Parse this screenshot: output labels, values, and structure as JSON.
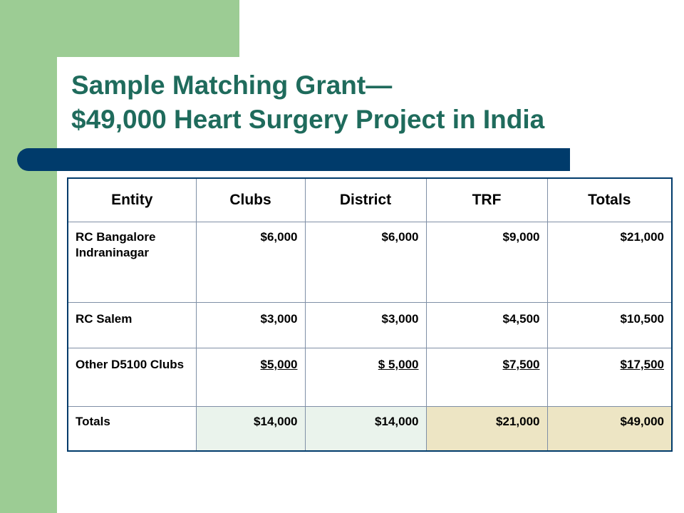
{
  "title": {
    "line1": "Sample Matching Grant—",
    "line2": "$49,000 Heart Surgery Project in India"
  },
  "table": {
    "headers": [
      "Entity",
      "Clubs",
      "District",
      "TRF",
      "Totals"
    ],
    "rows": [
      [
        "RC Bangalore Indraninagar",
        "$6,000",
        "$6,000",
        "$9,000",
        "$21,000"
      ],
      [
        "RC Salem",
        "$3,000",
        "$3,000",
        "$4,500",
        "$10,500"
      ],
      [
        "Other D5100 Clubs",
        "$5,000",
        "$ 5,000",
        "$7,500",
        "$17,500"
      ],
      [
        "Totals",
        "$14,000",
        "$14,000",
        "$21,000",
        "$49,000"
      ]
    ]
  },
  "colors": {
    "sidebar": "#9ccc94",
    "title": "#1f6b5c",
    "rule": "#003b6b",
    "totals_green": "#eaf3ec",
    "totals_tan": "#ede5c4"
  }
}
